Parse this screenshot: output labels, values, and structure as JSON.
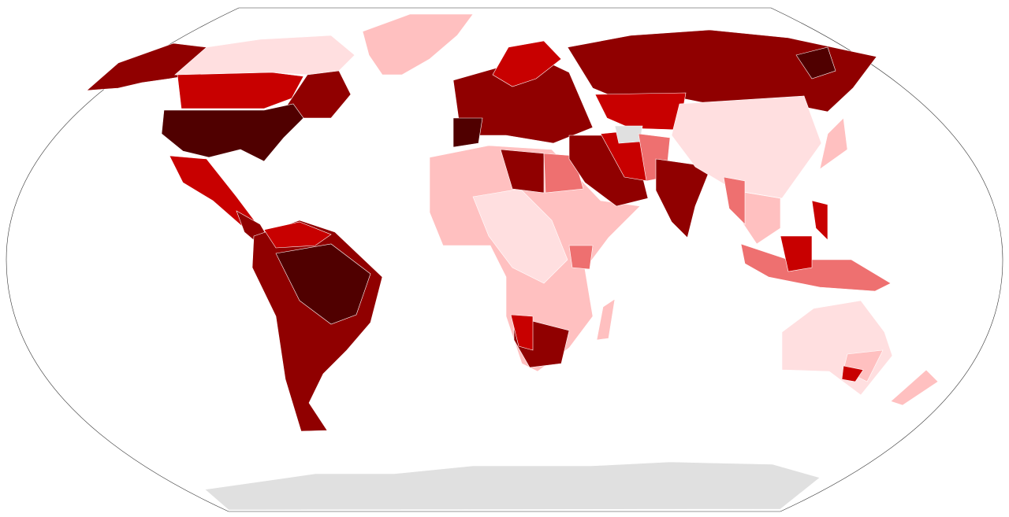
{
  "map": {
    "type": "choropleth",
    "colors": {
      "level1": "#ffdfe0",
      "level2": "#ffc0c0",
      "level3": "#ee7070",
      "level4": "#c80000",
      "level5": "#900000",
      "level6": "#500000",
      "no_data": "#e0e0e0"
    },
    "regions": [
      {
        "name": "alaska",
        "level": "level5"
      },
      {
        "name": "canada-north",
        "level": "level1"
      },
      {
        "name": "canada-south",
        "level": "level4"
      },
      {
        "name": "canada-east",
        "level": "level5"
      },
      {
        "name": "greenland",
        "level": "level2"
      },
      {
        "name": "usa",
        "level": "level6"
      },
      {
        "name": "mexico",
        "level": "level4"
      },
      {
        "name": "central-america",
        "level": "level5"
      },
      {
        "name": "south-america",
        "level": "level5"
      },
      {
        "name": "brazil-interior",
        "level": "level6"
      },
      {
        "name": "venezuela",
        "level": "level4"
      },
      {
        "name": "europe",
        "level": "level5"
      },
      {
        "name": "scandinavia",
        "level": "level4"
      },
      {
        "name": "iberia",
        "level": "level6"
      },
      {
        "name": "russia",
        "level": "level5"
      },
      {
        "name": "russia-east-dark",
        "level": "level6"
      },
      {
        "name": "central-asia",
        "level": "level4"
      },
      {
        "name": "north-africa-west",
        "level": "level3"
      },
      {
        "name": "africa",
        "level": "level2"
      },
      {
        "name": "africa-central",
        "level": "level1"
      },
      {
        "name": "libya",
        "level": "level5"
      },
      {
        "name": "egypt",
        "level": "level3"
      },
      {
        "name": "southern-africa",
        "level": "level5"
      },
      {
        "name": "namibia",
        "level": "level4"
      },
      {
        "name": "kenya",
        "level": "level3"
      },
      {
        "name": "madagascar",
        "level": "level2"
      },
      {
        "name": "middle-east",
        "level": "level5"
      },
      {
        "name": "iran",
        "level": "level4"
      },
      {
        "name": "turkmenistan",
        "level": "no_data"
      },
      {
        "name": "pakistan-afghanistan",
        "level": "level3"
      },
      {
        "name": "india",
        "level": "level5"
      },
      {
        "name": "china",
        "level": "level1"
      },
      {
        "name": "southeast-asia",
        "level": "level2"
      },
      {
        "name": "myanmar",
        "level": "level3"
      },
      {
        "name": "japan",
        "level": "level2"
      },
      {
        "name": "philippines",
        "level": "level4"
      },
      {
        "name": "indonesia",
        "level": "level3"
      },
      {
        "name": "borneo",
        "level": "level4"
      },
      {
        "name": "australia",
        "level": "level1"
      },
      {
        "name": "australia-southeast",
        "level": "level2"
      },
      {
        "name": "victoria",
        "level": "level4"
      },
      {
        "name": "new-zealand",
        "level": "level2"
      },
      {
        "name": "antarctica",
        "level": "no_data"
      }
    ]
  }
}
